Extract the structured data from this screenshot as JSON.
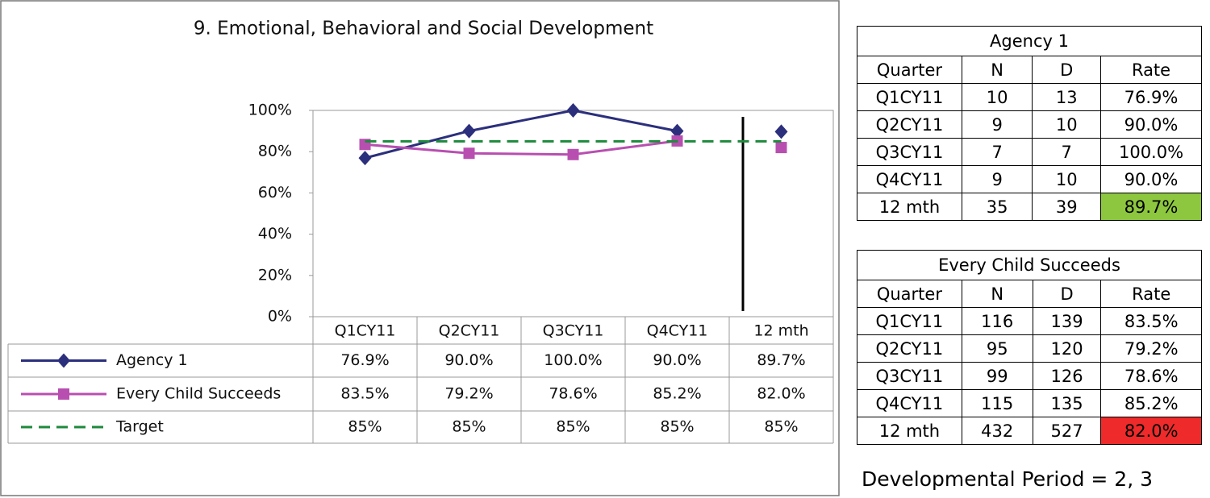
{
  "chart_data": {
    "type": "line",
    "title": "9. Emotional, Behavioral and Social Development",
    "categories": [
      "Q1CY11",
      "Q2CY11",
      "Q3CY11",
      "Q4CY11",
      "12 mth"
    ],
    "series": [
      {
        "name": "Agency 1",
        "color": "#2b2f7c",
        "marker": "diamond",
        "values": [
          76.9,
          90.0,
          100.0,
          90.0,
          89.7
        ],
        "value_labels": [
          "76.9%",
          "90.0%",
          "100.0%",
          "90.0%",
          "89.7%"
        ]
      },
      {
        "name": "Every Child Succeeds",
        "color": "#b84fb0",
        "marker": "square",
        "values": [
          83.5,
          79.2,
          78.6,
          85.2,
          82.0
        ],
        "value_labels": [
          "83.5%",
          "79.2%",
          "78.6%",
          "85.2%",
          "82.0%"
        ]
      },
      {
        "name": "Target",
        "color": "#1e8a3c",
        "marker": "none",
        "dashed": true,
        "values": [
          85,
          85,
          85,
          85,
          85
        ],
        "value_labels": [
          "85%",
          "85%",
          "85%",
          "85%",
          "85%"
        ]
      }
    ],
    "ylim": [
      0,
      100
    ],
    "yticks": [
      {
        "value": 0,
        "label": "0%"
      },
      {
        "value": 20,
        "label": "20%"
      },
      {
        "value": 40,
        "label": "40%"
      },
      {
        "value": 60,
        "label": "60%"
      },
      {
        "value": 80,
        "label": "80%"
      },
      {
        "value": 100,
        "label": "100%"
      }
    ]
  },
  "tables": [
    {
      "title": "Agency 1",
      "rate_color": "#8dc63f",
      "rows": [
        [
          "Quarter",
          "N",
          "D",
          "Rate"
        ],
        [
          "Q1CY11",
          "10",
          "13",
          "76.9%"
        ],
        [
          "Q2CY11",
          "9",
          "10",
          "90.0%"
        ],
        [
          "Q3CY11",
          "7",
          "7",
          "100.0%"
        ],
        [
          "Q4CY11",
          "9",
          "10",
          "90.0%"
        ],
        [
          "12 mth",
          "35",
          "39",
          "89.7%"
        ]
      ]
    },
    {
      "title": "Every Child Succeeds",
      "rate_color": "#ee2a2a",
      "rows": [
        [
          "Quarter",
          "N",
          "D",
          "Rate"
        ],
        [
          "Q1CY11",
          "116",
          "139",
          "83.5%"
        ],
        [
          "Q2CY11",
          "95",
          "120",
          "79.2%"
        ],
        [
          "Q3CY11",
          "99",
          "126",
          "78.6%"
        ],
        [
          "Q4CY11",
          "115",
          "135",
          "85.2%"
        ],
        [
          "12 mth",
          "432",
          "527",
          "82.0%"
        ]
      ]
    }
  ],
  "footnote": "Developmental Period = 2, 3"
}
